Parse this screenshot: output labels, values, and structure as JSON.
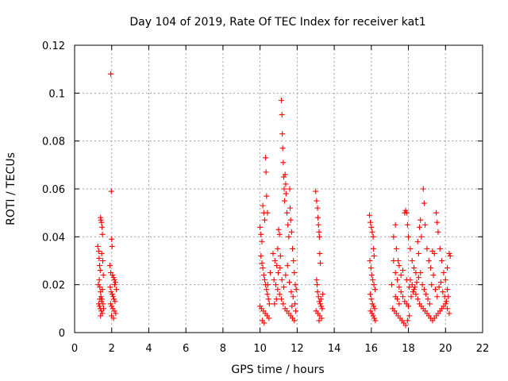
{
  "chart_data": {
    "type": "scatter",
    "title": "Day 104 of 2019, Rate Of TEC Index for receiver kat1",
    "xlabel": "GPS time / hours",
    "ylabel": "ROTI / TECUs",
    "xlim": [
      0,
      22
    ],
    "ylim": [
      0,
      0.12
    ],
    "xticks": [
      0,
      2,
      4,
      6,
      8,
      10,
      12,
      14,
      16,
      18,
      20,
      22
    ],
    "xtick_labels": [
      "0",
      "2",
      "4",
      "6",
      "8",
      "10",
      "12",
      "14",
      "16",
      "18",
      "20",
      "22"
    ],
    "yticks": [
      0,
      0.02,
      0.04,
      0.06,
      0.08,
      0.1,
      0.12
    ],
    "ytick_labels": [
      "0",
      "0.02",
      "0.04",
      "0.06",
      "0.08",
      "0.1",
      "0.12"
    ],
    "grid": true,
    "marker": "+",
    "color": "#ff0000",
    "series": [
      {
        "name": "kat1 ROTI",
        "points": [
          [
            1.25,
            0.036
          ],
          [
            1.3,
            0.034
          ],
          [
            1.32,
            0.031
          ],
          [
            1.35,
            0.028
          ],
          [
            1.38,
            0.026
          ],
          [
            1.4,
            0.048
          ],
          [
            1.42,
            0.047
          ],
          [
            1.45,
            0.046
          ],
          [
            1.48,
            0.044
          ],
          [
            1.5,
            0.041
          ],
          [
            1.33,
            0.022
          ],
          [
            1.36,
            0.019
          ],
          [
            1.4,
            0.017
          ],
          [
            1.42,
            0.015
          ],
          [
            1.45,
            0.013
          ],
          [
            1.3,
            0.012
          ],
          [
            1.34,
            0.011
          ],
          [
            1.38,
            0.01
          ],
          [
            1.44,
            0.009
          ],
          [
            1.5,
            0.008
          ],
          [
            1.28,
            0.02
          ],
          [
            1.46,
            0.033
          ],
          [
            1.52,
            0.03
          ],
          [
            1.55,
            0.024
          ],
          [
            1.5,
            0.018
          ],
          [
            1.47,
            0.014
          ],
          [
            1.53,
            0.012
          ],
          [
            1.56,
            0.01
          ],
          [
            1.4,
            0.007
          ],
          [
            1.36,
            0.014
          ],
          [
            1.95,
            0.108
          ],
          [
            1.98,
            0.059
          ],
          [
            2.0,
            0.039
          ],
          [
            2.02,
            0.036
          ],
          [
            1.9,
            0.028
          ],
          [
            1.95,
            0.025
          ],
          [
            2.05,
            0.024
          ],
          [
            2.1,
            0.023
          ],
          [
            2.15,
            0.022
          ],
          [
            2.2,
            0.021
          ],
          [
            1.92,
            0.019
          ],
          [
            1.97,
            0.017
          ],
          [
            2.03,
            0.016
          ],
          [
            2.08,
            0.015
          ],
          [
            2.12,
            0.014
          ],
          [
            2.18,
            0.013
          ],
          [
            1.94,
            0.012
          ],
          [
            2.0,
            0.011
          ],
          [
            2.06,
            0.01
          ],
          [
            2.14,
            0.009
          ],
          [
            2.22,
            0.008
          ],
          [
            1.99,
            0.007
          ],
          [
            2.1,
            0.006
          ],
          [
            2.25,
            0.018
          ],
          [
            2.16,
            0.02
          ],
          [
            10.0,
            0.044
          ],
          [
            10.05,
            0.041
          ],
          [
            10.1,
            0.038
          ],
          [
            10.15,
            0.053
          ],
          [
            10.2,
            0.05
          ],
          [
            10.25,
            0.047
          ],
          [
            10.3,
            0.073
          ],
          [
            10.32,
            0.067
          ],
          [
            10.35,
            0.057
          ],
          [
            10.4,
            0.05
          ],
          [
            10.05,
            0.032
          ],
          [
            10.1,
            0.029
          ],
          [
            10.15,
            0.027
          ],
          [
            10.2,
            0.024
          ],
          [
            10.25,
            0.022
          ],
          [
            10.3,
            0.02
          ],
          [
            10.35,
            0.018
          ],
          [
            10.4,
            0.016
          ],
          [
            10.45,
            0.014
          ],
          [
            10.5,
            0.012
          ],
          [
            10.0,
            0.011
          ],
          [
            10.08,
            0.01
          ],
          [
            10.18,
            0.009
          ],
          [
            10.28,
            0.008
          ],
          [
            10.38,
            0.007
          ],
          [
            10.48,
            0.006
          ],
          [
            10.12,
            0.005
          ],
          [
            10.22,
            0.004
          ],
          [
            10.42,
            0.02
          ],
          [
            10.55,
            0.025
          ],
          [
            10.7,
            0.033
          ],
          [
            10.8,
            0.03
          ],
          [
            10.9,
            0.028
          ],
          [
            10.95,
            0.035
          ],
          [
            11.0,
            0.043
          ],
          [
            11.05,
            0.041
          ],
          [
            11.1,
            0.032
          ],
          [
            11.15,
            0.097
          ],
          [
            11.18,
            0.091
          ],
          [
            11.2,
            0.083
          ],
          [
            11.22,
            0.077
          ],
          [
            11.25,
            0.071
          ],
          [
            11.28,
            0.065
          ],
          [
            11.3,
            0.06
          ],
          [
            11.32,
            0.055
          ],
          [
            11.35,
            0.066
          ],
          [
            11.38,
            0.062
          ],
          [
            11.4,
            0.058
          ],
          [
            11.45,
            0.05
          ],
          [
            11.5,
            0.045
          ],
          [
            11.55,
            0.04
          ],
          [
            11.6,
            0.06
          ],
          [
            11.62,
            0.052
          ],
          [
            11.65,
            0.047
          ],
          [
            11.7,
            0.042
          ],
          [
            11.75,
            0.035
          ],
          [
            11.8,
            0.03
          ],
          [
            11.85,
            0.025
          ],
          [
            11.9,
            0.02
          ],
          [
            11.95,
            0.018
          ],
          [
            10.75,
            0.022
          ],
          [
            10.85,
            0.02
          ],
          [
            10.95,
            0.018
          ],
          [
            11.05,
            0.016
          ],
          [
            11.15,
            0.014
          ],
          [
            11.25,
            0.012
          ],
          [
            11.35,
            0.01
          ],
          [
            11.45,
            0.009
          ],
          [
            11.55,
            0.008
          ],
          [
            11.65,
            0.007
          ],
          [
            11.75,
            0.006
          ],
          [
            11.85,
            0.005
          ],
          [
            10.78,
            0.012
          ],
          [
            10.88,
            0.014
          ],
          [
            10.98,
            0.025
          ],
          [
            11.08,
            0.027
          ],
          [
            11.18,
            0.022
          ],
          [
            11.28,
            0.019
          ],
          [
            11.38,
            0.024
          ],
          [
            11.48,
            0.028
          ],
          [
            11.58,
            0.021
          ],
          [
            11.68,
            0.017
          ],
          [
            11.78,
            0.015
          ],
          [
            11.88,
            0.012
          ],
          [
            11.92,
            0.009
          ],
          [
            11.72,
            0.011
          ],
          [
            13.0,
            0.059
          ],
          [
            13.05,
            0.055
          ],
          [
            13.1,
            0.052
          ],
          [
            13.12,
            0.048
          ],
          [
            13.15,
            0.045
          ],
          [
            13.18,
            0.042
          ],
          [
            13.2,
            0.04
          ],
          [
            13.22,
            0.033
          ],
          [
            13.25,
            0.029
          ],
          [
            13.05,
            0.022
          ],
          [
            13.08,
            0.02
          ],
          [
            13.1,
            0.017
          ],
          [
            13.15,
            0.015
          ],
          [
            13.2,
            0.013
          ],
          [
            13.25,
            0.012
          ],
          [
            13.3,
            0.011
          ],
          [
            13.35,
            0.01
          ],
          [
            13.02,
            0.009
          ],
          [
            13.12,
            0.008
          ],
          [
            13.22,
            0.007
          ],
          [
            13.32,
            0.006
          ],
          [
            13.18,
            0.005
          ],
          [
            13.28,
            0.014
          ],
          [
            13.38,
            0.016
          ],
          [
            15.9,
            0.049
          ],
          [
            15.95,
            0.046
          ],
          [
            16.0,
            0.044
          ],
          [
            16.05,
            0.042
          ],
          [
            16.1,
            0.04
          ],
          [
            16.12,
            0.035
          ],
          [
            16.15,
            0.032
          ],
          [
            15.92,
            0.03
          ],
          [
            15.98,
            0.027
          ],
          [
            16.02,
            0.024
          ],
          [
            16.08,
            0.022
          ],
          [
            16.14,
            0.02
          ],
          [
            16.2,
            0.018
          ],
          [
            15.94,
            0.016
          ],
          [
            16.0,
            0.014
          ],
          [
            16.06,
            0.012
          ],
          [
            16.12,
            0.011
          ],
          [
            16.18,
            0.01
          ],
          [
            15.96,
            0.009
          ],
          [
            16.04,
            0.008
          ],
          [
            16.1,
            0.007
          ],
          [
            16.16,
            0.006
          ],
          [
            16.22,
            0.005
          ],
          [
            17.1,
            0.02
          ],
          [
            17.2,
            0.03
          ],
          [
            17.3,
            0.025
          ],
          [
            17.4,
            0.022
          ],
          [
            17.5,
            0.019
          ],
          [
            17.6,
            0.017
          ],
          [
            17.7,
            0.015
          ],
          [
            17.8,
            0.013
          ],
          [
            17.9,
            0.012
          ],
          [
            18.0,
            0.011
          ],
          [
            17.15,
            0.01
          ],
          [
            17.25,
            0.009
          ],
          [
            17.35,
            0.008
          ],
          [
            17.45,
            0.007
          ],
          [
            17.55,
            0.006
          ],
          [
            17.65,
            0.005
          ],
          [
            17.75,
            0.004
          ],
          [
            17.85,
            0.003
          ],
          [
            17.95,
            0.005
          ],
          [
            18.05,
            0.007
          ],
          [
            17.2,
            0.04
          ],
          [
            17.3,
            0.045
          ],
          [
            17.35,
            0.035
          ],
          [
            17.45,
            0.03
          ],
          [
            17.5,
            0.028
          ],
          [
            17.8,
            0.05
          ],
          [
            17.85,
            0.051
          ],
          [
            17.9,
            0.05
          ],
          [
            17.95,
            0.045
          ],
          [
            18.0,
            0.04
          ],
          [
            18.1,
            0.035
          ],
          [
            18.2,
            0.03
          ],
          [
            18.3,
            0.027
          ],
          [
            18.4,
            0.025
          ],
          [
            18.5,
            0.038
          ],
          [
            18.55,
            0.033
          ],
          [
            18.6,
            0.044
          ],
          [
            18.65,
            0.047
          ],
          [
            18.7,
            0.04
          ],
          [
            18.8,
            0.06
          ],
          [
            18.85,
            0.054
          ],
          [
            18.9,
            0.045
          ],
          [
            19.0,
            0.035
          ],
          [
            19.1,
            0.03
          ],
          [
            19.2,
            0.027
          ],
          [
            19.3,
            0.034
          ],
          [
            19.4,
            0.033
          ],
          [
            19.5,
            0.05
          ],
          [
            19.55,
            0.046
          ],
          [
            19.6,
            0.042
          ],
          [
            19.7,
            0.035
          ],
          [
            19.8,
            0.03
          ],
          [
            19.9,
            0.025
          ],
          [
            20.0,
            0.022
          ],
          [
            20.1,
            0.027
          ],
          [
            20.2,
            0.033
          ],
          [
            20.25,
            0.032
          ],
          [
            20.1,
            0.018
          ],
          [
            18.1,
            0.022
          ],
          [
            18.2,
            0.02
          ],
          [
            18.3,
            0.018
          ],
          [
            18.4,
            0.016
          ],
          [
            18.5,
            0.014
          ],
          [
            18.6,
            0.012
          ],
          [
            18.7,
            0.011
          ],
          [
            18.8,
            0.01
          ],
          [
            18.9,
            0.009
          ],
          [
            19.0,
            0.008
          ],
          [
            19.1,
            0.007
          ],
          [
            19.2,
            0.006
          ],
          [
            19.3,
            0.005
          ],
          [
            19.4,
            0.006
          ],
          [
            19.5,
            0.007
          ],
          [
            19.6,
            0.008
          ],
          [
            19.7,
            0.009
          ],
          [
            19.8,
            0.01
          ],
          [
            19.9,
            0.011
          ],
          [
            20.0,
            0.012
          ],
          [
            20.1,
            0.01
          ],
          [
            20.2,
            0.008
          ],
          [
            18.15,
            0.015
          ],
          [
            18.25,
            0.017
          ],
          [
            18.35,
            0.019
          ],
          [
            18.45,
            0.021
          ],
          [
            18.55,
            0.023
          ],
          [
            18.65,
            0.025
          ],
          [
            18.75,
            0.02
          ],
          [
            18.85,
            0.018
          ],
          [
            18.95,
            0.016
          ],
          [
            19.05,
            0.014
          ],
          [
            19.15,
            0.012
          ],
          [
            19.25,
            0.02
          ],
          [
            19.35,
            0.024
          ],
          [
            19.45,
            0.018
          ],
          [
            19.55,
            0.015
          ],
          [
            19.65,
            0.019
          ],
          [
            19.75,
            0.021
          ],
          [
            19.85,
            0.017
          ],
          [
            19.95,
            0.015
          ],
          [
            20.05,
            0.013
          ],
          [
            20.15,
            0.015
          ],
          [
            17.6,
            0.024
          ],
          [
            17.7,
            0.026
          ],
          [
            17.5,
            0.012
          ],
          [
            17.3,
            0.015
          ],
          [
            17.4,
            0.014
          ],
          [
            17.9,
            0.022
          ],
          [
            18.05,
            0.019
          ]
        ]
      }
    ]
  }
}
